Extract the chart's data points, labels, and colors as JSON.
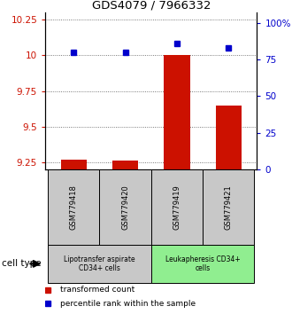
{
  "title": "GDS4079 / 7966332",
  "samples": [
    "GSM779418",
    "GSM779420",
    "GSM779419",
    "GSM779421"
  ],
  "red_values": [
    9.27,
    9.265,
    10.0,
    9.65
  ],
  "blue_values": [
    80.0,
    80.0,
    86.0,
    83.0
  ],
  "ylim_left": [
    9.2,
    10.3
  ],
  "ylim_right": [
    0,
    107.0
  ],
  "yticks_left": [
    9.25,
    9.5,
    9.75,
    10.0,
    10.25
  ],
  "yticks_right": [
    0,
    25,
    50,
    75,
    100
  ],
  "ytick_labels_left": [
    "9.25",
    "9.5",
    "9.75",
    "10",
    "10.25"
  ],
  "ytick_labels_right": [
    "0",
    "25",
    "50",
    "75",
    "100%"
  ],
  "groups": [
    {
      "label": "Lipotransfer aspirate\nCD34+ cells",
      "samples": [
        0,
        1
      ],
      "color": "#c8c8c8"
    },
    {
      "label": "Leukapheresis CD34+\ncells",
      "samples": [
        2,
        3
      ],
      "color": "#90ee90"
    }
  ],
  "cell_type_label": "cell type",
  "legend_red": "transformed count",
  "legend_blue": "percentile rank within the sample",
  "red_color": "#cc1100",
  "blue_color": "#0000cc",
  "bar_width": 0.5,
  "dotted_grid_color": "#555555",
  "background_color": "#ffffff",
  "sample_box_color": "#c8c8c8"
}
